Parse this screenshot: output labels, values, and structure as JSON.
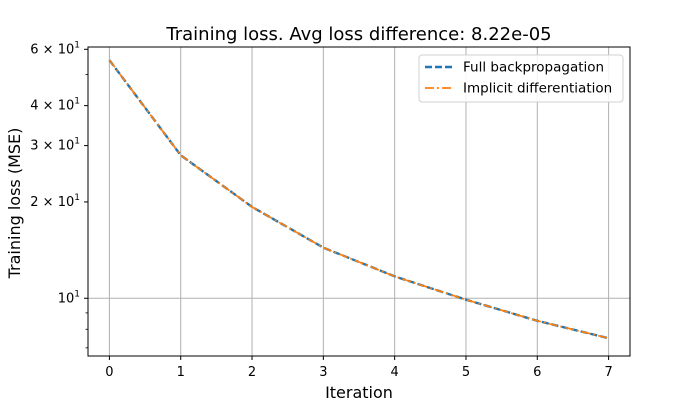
{
  "chart_data": {
    "type": "line",
    "title": "Training loss. Avg loss difference: 8.22e-05",
    "xlabel": "Iteration",
    "ylabel": "Training loss (MSE)",
    "x": [
      0,
      1,
      2,
      3,
      4,
      5,
      6,
      7
    ],
    "xlim": [
      -0.3,
      7.3
    ],
    "ylim": [
      6.6,
      61
    ],
    "yscale": "log",
    "grid": true,
    "legend_position": "top-right",
    "x_ticks": [
      0,
      1,
      2,
      3,
      4,
      5,
      6,
      7
    ],
    "y_ticks": [
      {
        "value": 10,
        "mantissa": "",
        "base": "10",
        "exp": "1"
      },
      {
        "value": 20,
        "mantissa": "2",
        "base": "10",
        "exp": "1"
      },
      {
        "value": 30,
        "mantissa": "3",
        "base": "10",
        "exp": "1"
      },
      {
        "value": 40,
        "mantissa": "4",
        "base": "10",
        "exp": "1"
      },
      {
        "value": 60,
        "mantissa": "6",
        "base": "10",
        "exp": "1"
      }
    ],
    "y_minor_ticks": [
      7,
      8,
      9,
      50
    ],
    "series": [
      {
        "name": "Full backpropagation",
        "values": [
          55.5,
          28.0,
          19.3,
          14.4,
          11.7,
          9.9,
          8.5,
          7.5
        ],
        "color": "#1f77b4",
        "style": "dashed"
      },
      {
        "name": "Implicit differentiation",
        "values": [
          55.5,
          28.0,
          19.3,
          14.4,
          11.7,
          9.9,
          8.5,
          7.5
        ],
        "color": "#ff7f0e",
        "style": "dashdot"
      }
    ]
  }
}
